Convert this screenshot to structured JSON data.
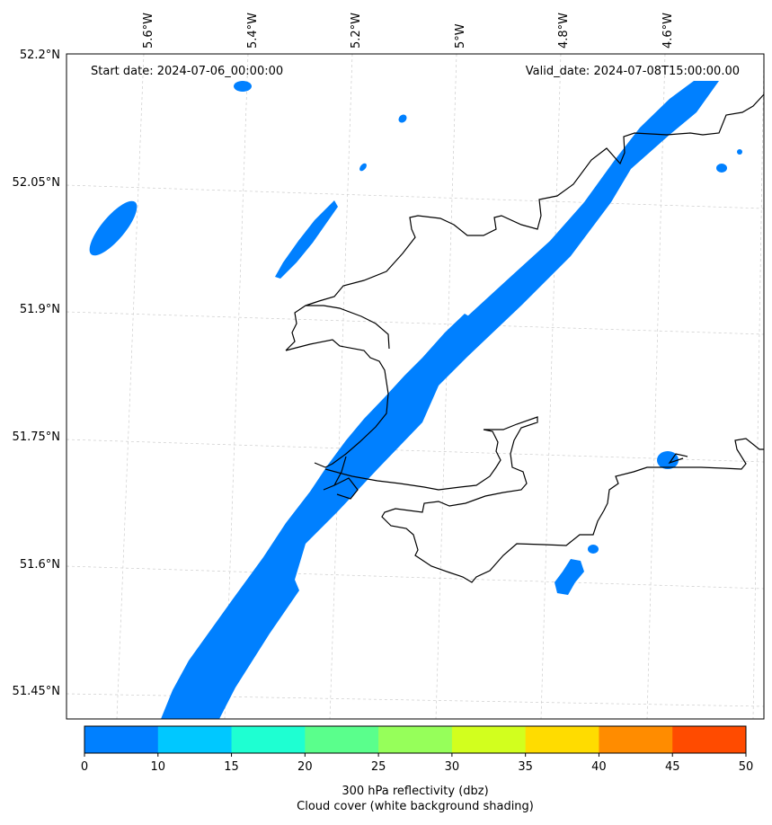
{
  "header": {
    "start_date": "Start date: 2024-07-06_00:00:00",
    "valid_date": "Valid_date: 2024-07-08T15:00:00.00"
  },
  "axes": {
    "lon_labels": [
      "5.6°W",
      "5.4°W",
      "5.2°W",
      "5°W",
      "4.8°W",
      "4.6°W"
    ],
    "lat_labels": [
      "52.2°N",
      "52.05°N",
      "51.9°N",
      "51.75°N",
      "51.6°N",
      "51.45°N"
    ]
  },
  "colorbar": {
    "ticks": [
      "0",
      "10",
      "15",
      "20",
      "25",
      "30",
      "35",
      "40",
      "45",
      "50"
    ],
    "colors": [
      "#0080ff",
      "#00c8ff",
      "#1effd2",
      "#5aff8c",
      "#96ff5a",
      "#d2ff1e",
      "#ffdc00",
      "#ff8c00",
      "#ff4b00"
    ],
    "label_line1": "300 hPa reflectivity (dbz)",
    "label_line2": "Cloud cover (white background shading)"
  },
  "style": {
    "reflectivity_color": "#0080ff",
    "coastline_color": "#000000",
    "grid_color": "#cccccc"
  }
}
